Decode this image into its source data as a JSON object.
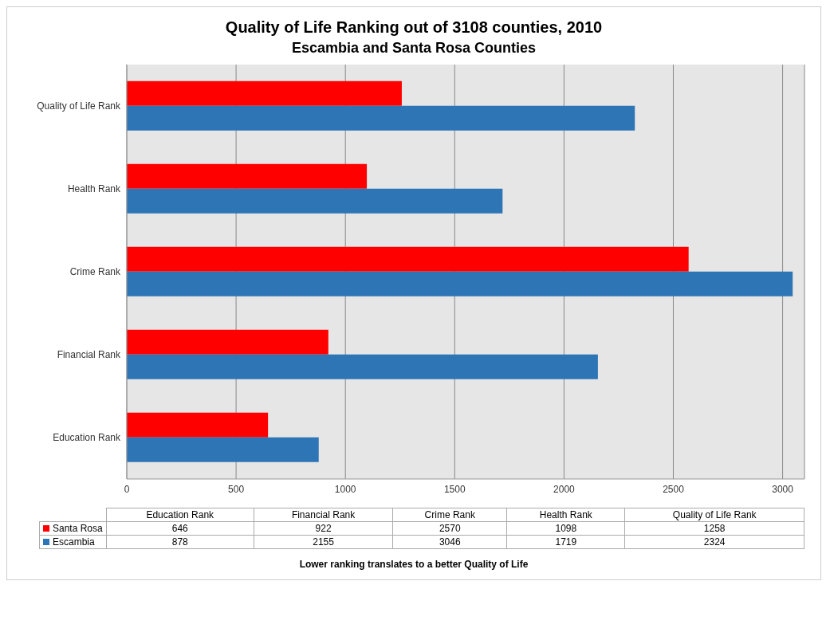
{
  "chart_data": [
    {
      "type": "bar",
      "orientation": "horizontal",
      "title": "Quality of Life Ranking out of 3108 counties, 2010",
      "subtitle": "Escambia and Santa Rosa Counties",
      "categories": [
        "Quality of Life Rank",
        "Health Rank",
        "Crime Rank",
        "Financial Rank",
        "Education Rank"
      ],
      "series": [
        {
          "color": "#ff0000",
          "values": [
            1258,
            1098,
            2570,
            922,
            646
          ]
        },
        {
          "color": "#2e75b6",
          "values": [
            2324,
            1719,
            3046,
            2155,
            878
          ]
        }
      ],
      "xlim": [
        0,
        3100
      ],
      "xticks": [
        0,
        500,
        1000,
        1500,
        2000,
        2500,
        3000
      ],
      "grid": "x"
    },
    {
      "type": "heatmap",
      "categories": [
        "Education Rank",
        "Financial Rank",
        "Crime Rank",
        "Health Rank",
        "Quality of Life Rank"
      ],
      "y_categories": [
        "Santa Rosa",
        "Escambia"
      ],
      "cells": [
        [
          646,
          922,
          2570,
          1098,
          1258
        ],
        [
          878,
          2155,
          3046,
          1719,
          2324
        ]
      ],
      "data_labels": true,
      "annotations": [
        "Lower ranking translates to a better Quality of Life"
      ]
    }
  ]
}
